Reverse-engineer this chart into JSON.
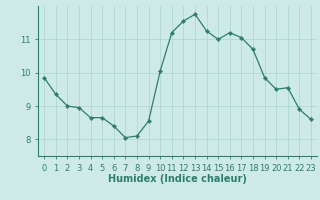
{
  "x": [
    0,
    1,
    2,
    3,
    4,
    5,
    6,
    7,
    8,
    9,
    10,
    11,
    12,
    13,
    14,
    15,
    16,
    17,
    18,
    19,
    20,
    21,
    22,
    23
  ],
  "y": [
    9.85,
    9.35,
    9.0,
    8.95,
    8.65,
    8.65,
    8.4,
    8.05,
    8.1,
    8.55,
    10.05,
    11.2,
    11.55,
    11.75,
    11.25,
    11.0,
    11.2,
    11.05,
    10.7,
    9.85,
    9.5,
    9.55,
    8.9,
    8.6
  ],
  "line_color": "#2e7d6e",
  "marker": "D",
  "marker_size": 2.2,
  "bg_color": "#ceeae7",
  "grid_color": "#b0d8d4",
  "axis_color": "#2e7d6e",
  "xlabel": "Humidex (Indice chaleur)",
  "xlim": [
    -0.5,
    23.5
  ],
  "ylim": [
    7.5,
    12.0
  ],
  "yticks": [
    8,
    9,
    10,
    11
  ],
  "xticks": [
    0,
    1,
    2,
    3,
    4,
    5,
    6,
    7,
    8,
    9,
    10,
    11,
    12,
    13,
    14,
    15,
    16,
    17,
    18,
    19,
    20,
    21,
    22,
    23
  ],
  "tick_font_size": 6.0,
  "label_font_size": 7.0
}
